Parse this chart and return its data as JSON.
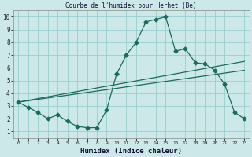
{
  "title": "Courbe de l'humidex pour Herhet (Be)",
  "xlabel": "Humidex (Indice chaleur)",
  "bg_color": "#cce8e8",
  "grid_color": "#99cccc",
  "line_color": "#1a6b5a",
  "xlim": [
    -0.5,
    23.5
  ],
  "ylim": [
    0.5,
    10.5
  ],
  "xticks": [
    0,
    1,
    2,
    3,
    4,
    5,
    6,
    7,
    8,
    9,
    10,
    11,
    12,
    13,
    14,
    15,
    16,
    17,
    18,
    19,
    20,
    21,
    22,
    23
  ],
  "yticks": [
    1,
    2,
    3,
    4,
    5,
    6,
    7,
    8,
    9,
    10
  ],
  "line1_x": [
    0,
    1,
    2,
    3,
    4,
    5,
    6,
    7,
    8,
    9,
    10
  ],
  "line1_y": [
    3.3,
    2.9,
    2.5,
    2.0,
    2.3,
    1.8,
    1.4,
    1.3,
    1.3,
    2.7,
    5.5
  ],
  "line2_x": [
    0,
    23
  ],
  "line2_y": [
    3.3,
    6.5
  ],
  "line3_x": [
    0,
    23
  ],
  "line3_y": [
    3.3,
    5.8
  ],
  "line4_x": [
    10,
    11,
    12,
    13,
    14,
    15,
    16,
    17,
    18,
    19,
    20,
    21,
    22,
    23
  ],
  "line4_y": [
    5.5,
    7.0,
    8.0,
    9.6,
    9.8,
    10.0,
    7.3,
    7.5,
    6.4,
    6.3,
    5.8,
    4.7,
    2.5,
    2.0
  ]
}
